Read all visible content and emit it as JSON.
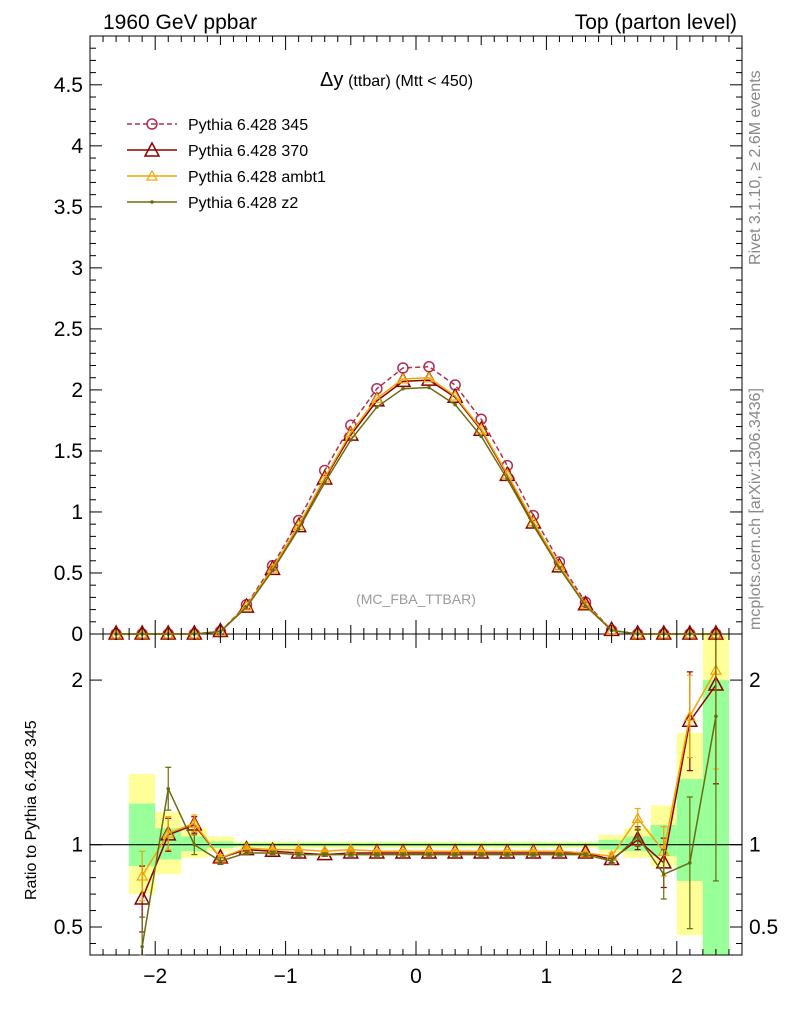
{
  "header": {
    "left": "1960 GeV ppbar",
    "right": "Top (parton level)"
  },
  "side_labels": {
    "rivet": "Rivet 3.1.10, ≥ 2.6M events",
    "mcplots": "mcplots.cern.ch [arXiv:1306.3436]"
  },
  "colors": {
    "p345": "#b03050",
    "p370": "#8b0000",
    "ambt1": "#f5a300",
    "z2": "#6b6b10",
    "band_yellow": "#ffff99",
    "band_green": "#99ff99"
  },
  "chart_data": [
    {
      "type": "line",
      "title_main": "Δy",
      "title_sub": "(ttbar) (Mtt < 450)",
      "annotation": "(MC_FBA_TTBAR)",
      "xlim": [
        -2.5,
        2.5
      ],
      "ylim": [
        0,
        4.9
      ],
      "yticks": [
        0,
        0.5,
        1,
        1.5,
        2,
        2.5,
        3,
        3.5,
        4,
        4.5
      ],
      "ytick_labels": [
        "0",
        "0.5",
        "1",
        "1.5",
        "2",
        "2.5",
        "3",
        "3.5",
        "4",
        "4.5"
      ],
      "legend_position": "top-left",
      "x": [
        -2.3,
        -2.1,
        -1.9,
        -1.7,
        -1.5,
        -1.3,
        -1.1,
        -0.9,
        -0.7,
        -0.5,
        -0.3,
        -0.1,
        0.1,
        0.3,
        0.5,
        0.7,
        0.9,
        1.1,
        1.3,
        1.5,
        1.7,
        1.9,
        2.1,
        2.3
      ],
      "series": [
        {
          "name": "Pythia 6.428 345",
          "color_key": "p345",
          "marker": "circle",
          "dashed": true,
          "values": [
            0.0,
            0.0,
            0.0,
            0.0,
            0.02,
            0.24,
            0.56,
            0.93,
            1.34,
            1.71,
            2.01,
            2.18,
            2.19,
            2.04,
            1.76,
            1.38,
            0.97,
            0.59,
            0.26,
            0.03,
            0.0,
            0.0,
            0.0,
            0.0
          ]
        },
        {
          "name": "Pythia 6.428 370",
          "color_key": "p370",
          "marker": "triangle-large",
          "dashed": false,
          "values": [
            0.0,
            0.0,
            0.0,
            0.0,
            0.02,
            0.22,
            0.53,
            0.88,
            1.27,
            1.63,
            1.91,
            2.07,
            2.08,
            1.94,
            1.67,
            1.3,
            0.91,
            0.55,
            0.24,
            0.03,
            0.0,
            0.0,
            0.0,
            0.0
          ]
        },
        {
          "name": "Pythia 6.428 ambt1",
          "color_key": "ambt1",
          "marker": "triangle-small",
          "dashed": false,
          "values": [
            0.0,
            0.0,
            0.0,
            0.0,
            0.02,
            0.23,
            0.54,
            0.89,
            1.28,
            1.65,
            1.93,
            2.09,
            2.1,
            1.95,
            1.68,
            1.31,
            0.92,
            0.56,
            0.24,
            0.03,
            0.0,
            0.0,
            0.0,
            0.0
          ]
        },
        {
          "name": "Pythia 6.428 z2",
          "color_key": "z2",
          "marker": "dot",
          "dashed": false,
          "values": [
            0.0,
            0.0,
            0.0,
            0.0,
            0.02,
            0.22,
            0.52,
            0.86,
            1.24,
            1.59,
            1.86,
            2.01,
            2.02,
            1.88,
            1.62,
            1.27,
            0.89,
            0.54,
            0.23,
            0.03,
            0.0,
            0.0,
            0.0,
            0.0
          ]
        }
      ]
    },
    {
      "type": "line",
      "ylabel": "Ratio to Pythia 6.428 345",
      "xlim": [
        -2.5,
        2.5
      ],
      "ylim": [
        0.33,
        2.28
      ],
      "xticks": [
        -2,
        -1,
        0,
        1,
        2
      ],
      "xtick_labels": [
        "−2",
        "−1",
        "0",
        "1",
        "2"
      ],
      "yticks": [
        0.5,
        1,
        2
      ],
      "ytick_labels": [
        "0.5",
        "1",
        "2"
      ],
      "x": [
        -2.1,
        -1.9,
        -1.7,
        -1.5,
        -1.3,
        -1.1,
        -0.9,
        -0.7,
        -0.5,
        -0.3,
        -0.1,
        0.1,
        0.3,
        0.5,
        0.7,
        0.9,
        1.1,
        1.3,
        1.5,
        1.7,
        1.9,
        2.1,
        2.3
      ],
      "bands": {
        "yellow_lo": [
          0.7,
          0.82,
          0.92,
          0.96,
          0.98,
          0.98,
          0.98,
          0.98,
          0.98,
          0.98,
          0.98,
          0.98,
          0.98,
          0.98,
          0.98,
          0.98,
          0.98,
          0.98,
          0.95,
          0.92,
          0.87,
          0.45,
          0.33
        ],
        "yellow_hi": [
          1.43,
          1.2,
          1.1,
          1.05,
          1.02,
          1.02,
          1.02,
          1.02,
          1.02,
          1.02,
          1.02,
          1.02,
          1.02,
          1.02,
          1.02,
          1.02,
          1.02,
          1.02,
          1.06,
          1.1,
          1.24,
          1.68,
          2.28
        ],
        "green_lo": [
          0.87,
          0.91,
          0.96,
          0.98,
          0.99,
          0.99,
          0.99,
          0.99,
          0.99,
          0.99,
          0.99,
          0.99,
          0.99,
          0.99,
          0.99,
          0.99,
          0.99,
          0.99,
          0.97,
          0.96,
          0.93,
          0.78,
          0.33
        ],
        "green_hi": [
          1.25,
          1.1,
          1.05,
          1.02,
          1.01,
          1.01,
          1.01,
          1.01,
          1.01,
          1.01,
          1.01,
          1.01,
          1.01,
          1.01,
          1.01,
          1.01,
          1.01,
          1.01,
          1.03,
          1.05,
          1.12,
          1.4,
          2.0
        ]
      },
      "series": [
        {
          "name": "Pythia 6.428 370",
          "color_key": "p370",
          "marker": "triangle-large",
          "values": [
            0.67,
            1.06,
            1.12,
            0.92,
            0.97,
            0.96,
            0.95,
            0.94,
            0.95,
            0.95,
            0.95,
            0.95,
            0.95,
            0.95,
            0.95,
            0.95,
            0.95,
            0.95,
            0.91,
            1.03,
            0.89,
            1.75,
            1.97
          ],
          "err": [
            0.2,
            0.1,
            0.05,
            0.02,
            0.01,
            0.01,
            0.01,
            0.01,
            0.01,
            0.01,
            0.01,
            0.01,
            0.01,
            0.01,
            0.01,
            0.01,
            0.01,
            0.01,
            0.02,
            0.06,
            0.15,
            0.3,
            0.6
          ]
        },
        {
          "name": "Pythia 6.428 ambt1",
          "color_key": "ambt1",
          "marker": "triangle-small",
          "values": [
            0.81,
            1.07,
            1.13,
            0.92,
            0.98,
            0.97,
            0.97,
            0.96,
            0.97,
            0.96,
            0.96,
            0.96,
            0.96,
            0.96,
            0.96,
            0.96,
            0.96,
            0.95,
            0.93,
            1.16,
            0.96,
            1.78,
            2.06
          ],
          "err": [
            0.15,
            0.1,
            0.05,
            0.02,
            0.01,
            0.01,
            0.01,
            0.01,
            0.01,
            0.01,
            0.01,
            0.01,
            0.01,
            0.01,
            0.01,
            0.01,
            0.01,
            0.01,
            0.02,
            0.06,
            0.15,
            0.25,
            0.6
          ]
        },
        {
          "name": "Pythia 6.428 z2",
          "color_key": "z2",
          "marker": "dot",
          "values": [
            0.38,
            1.34,
            1.0,
            0.9,
            0.95,
            0.95,
            0.94,
            0.94,
            0.94,
            0.94,
            0.94,
            0.94,
            0.94,
            0.94,
            0.94,
            0.94,
            0.94,
            0.94,
            0.9,
            1.05,
            0.82,
            0.89,
            1.78
          ],
          "err": [
            0.18,
            0.13,
            0.06,
            0.02,
            0.01,
            0.01,
            0.01,
            0.01,
            0.01,
            0.01,
            0.01,
            0.01,
            0.01,
            0.01,
            0.01,
            0.01,
            0.01,
            0.01,
            0.02,
            0.06,
            0.15,
            0.4,
            1.0
          ]
        }
      ]
    }
  ]
}
